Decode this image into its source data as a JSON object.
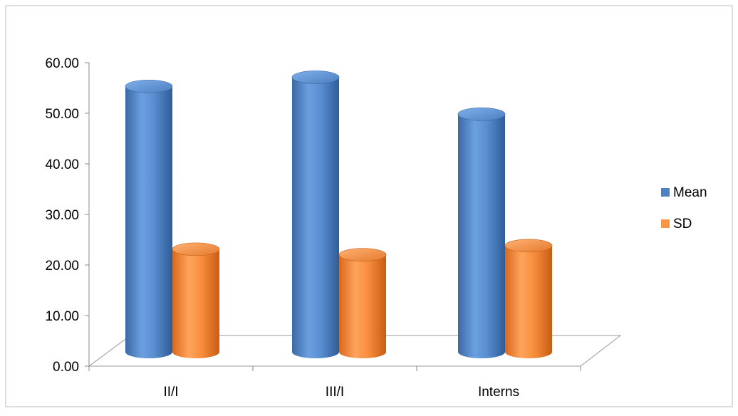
{
  "chart_data": {
    "type": "bar",
    "title": "",
    "xlabel": "",
    "ylabel": "",
    "categories": [
      "II/I",
      "III/I",
      "Interns"
    ],
    "series": [
      {
        "name": "Mean",
        "values": [
          52.5,
          54.3,
          47.0
        ]
      },
      {
        "name": "SD",
        "values": [
          20.3,
          19.2,
          21.0
        ]
      }
    ],
    "ylim": [
      0,
      60
    ],
    "yticks": [
      "0.00",
      "10.00",
      "20.00",
      "30.00",
      "40.00",
      "50.00",
      "60.00"
    ],
    "legend_position": "right",
    "gridlines": false,
    "style": "3d-cylinder",
    "colors": {
      "Mean": "#4F81BD",
      "SD": "#F79646",
      "axis": "#888888",
      "frame": "#BFBFBF"
    }
  }
}
